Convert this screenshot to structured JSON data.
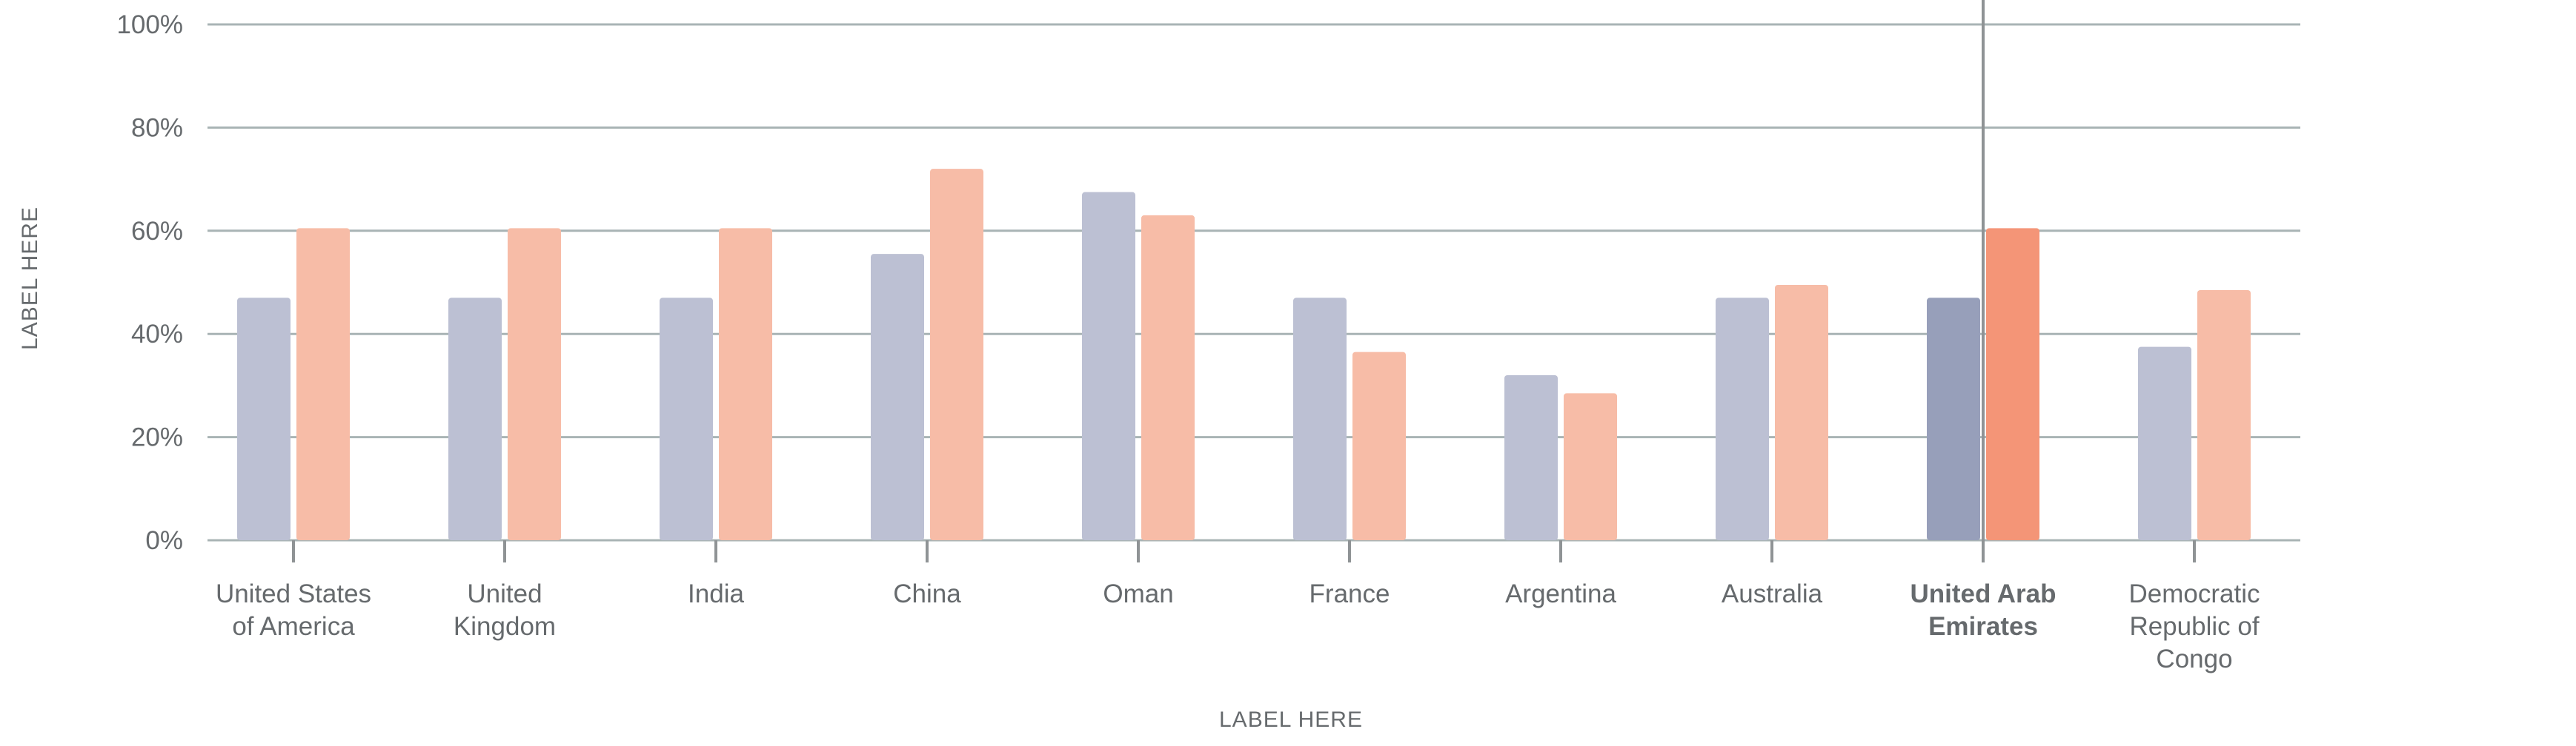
{
  "chart_data": {
    "type": "bar",
    "title": "",
    "xlabel": "LABEL HERE",
    "ylabel": "LABEL HERE",
    "ylim": [
      0,
      100
    ],
    "yticks": [
      "0%",
      "20%",
      "40%",
      "60%",
      "80%",
      "100%"
    ],
    "ytick_values": [
      0,
      20,
      40,
      60,
      80,
      100
    ],
    "grid": true,
    "legend": "none",
    "categories": [
      [
        "United States",
        "of America"
      ],
      [
        "United",
        "Kingdom"
      ],
      [
        "India"
      ],
      [
        "China"
      ],
      [
        "Oman"
      ],
      [
        "France"
      ],
      [
        "Argentina"
      ],
      [
        "Australia"
      ],
      [
        "United Arab",
        "Emirates"
      ],
      [
        "Democratic",
        "Republic of",
        "Congo"
      ]
    ],
    "highlighted_category_index": 8,
    "series": [
      {
        "values": [
          47,
          47,
          47,
          55.5,
          67.5,
          47,
          32,
          47,
          47,
          37.5
        ]
      },
      {
        "values": [
          60.5,
          60.5,
          60.5,
          72,
          63,
          36.5,
          28.5,
          49.5,
          60.5,
          48.5
        ]
      }
    ],
    "colors": {
      "series1": "#bcc0d3",
      "series2": "#f7bca7",
      "series1_highlight": "#979fba",
      "series2_highlight": "#f49577",
      "grid": "#a9b4b5",
      "marker_line": "#8f9395",
      "text": "#666a6d"
    }
  }
}
